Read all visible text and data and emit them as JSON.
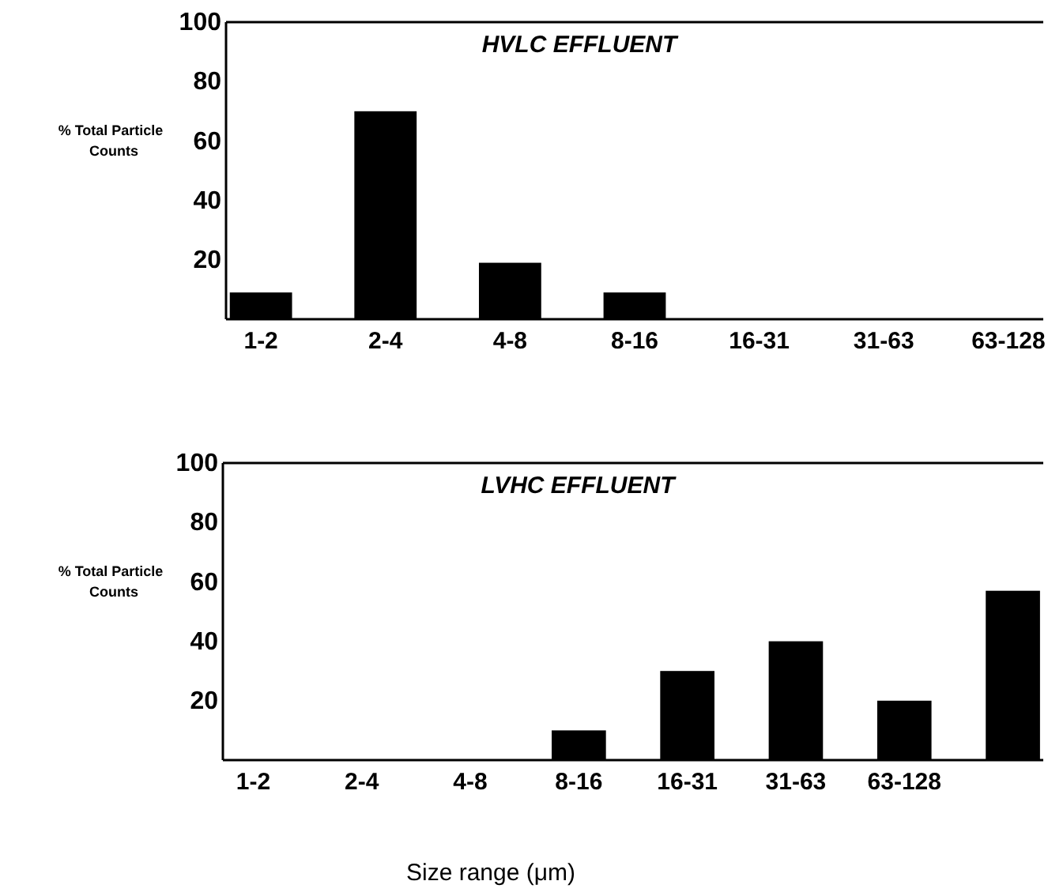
{
  "chart_data": [
    {
      "type": "bar",
      "title": "HVLC EFFLUENT",
      "ylabel": "% Total Particle Counts",
      "categories": [
        "1-2",
        "2-4",
        "4-8",
        "8-16",
        "16-31",
        "31-63",
        "63-128"
      ],
      "values": [
        9,
        70,
        19,
        9,
        0,
        0,
        0
      ],
      "color": "#000000",
      "ylim": [
        0,
        100
      ],
      "yticks": [
        20,
        40,
        60,
        80,
        100
      ],
      "grid": false
    },
    {
      "type": "bar",
      "title": "LVHC EFFLUENT",
      "ylabel": "% Total Particle Counts",
      "xlabel": "Size range (μm)",
      "categories": [
        "1-2",
        "2-4",
        "4-8",
        "8-16",
        "16-31",
        "31-63",
        "63-128",
        null
      ],
      "values": [
        0,
        0,
        0,
        10,
        30,
        40,
        20,
        57
      ],
      "color": "#000000",
      "ylim": [
        0,
        100
      ],
      "yticks": [
        20,
        40,
        60,
        80,
        100
      ],
      "grid": false
    }
  ]
}
